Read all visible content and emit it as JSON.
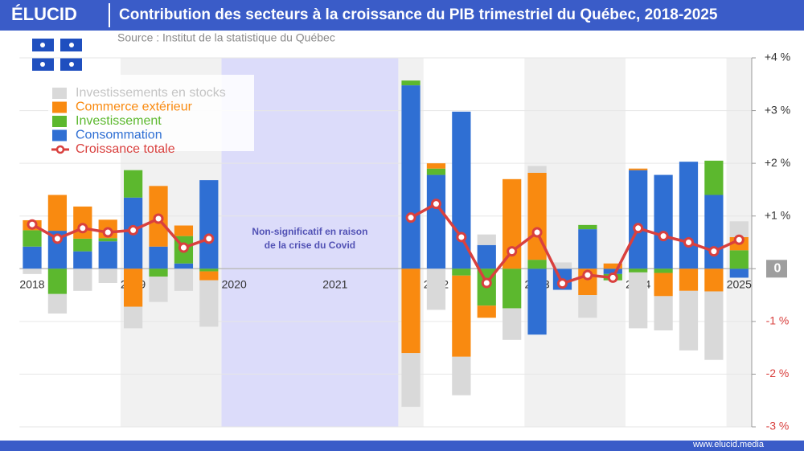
{
  "header": {
    "logo": "ÉLUCID",
    "title": "Contribution des secteurs à la croissance du PIB trimestriel du Québec, 2018-2025",
    "source": "Source : Institut de la statistique du Québec"
  },
  "footer": {
    "url": "www.elucid.media"
  },
  "chart_data": {
    "type": "bar",
    "stacked": true,
    "categories": [
      "2018",
      null,
      null,
      null,
      "2019",
      null,
      null,
      null,
      "2020",
      null,
      null,
      null,
      "2021",
      null,
      null,
      null,
      "2022",
      null,
      null,
      null,
      "2023",
      null,
      null,
      null,
      "2024",
      null,
      null,
      null,
      "2025"
    ],
    "series": [
      {
        "name": "Consommation",
        "color": "#2f6fd3",
        "values": [
          0.42,
          0.72,
          0.33,
          0.52,
          1.35,
          0.42,
          0.1,
          1.68,
          null,
          null,
          null,
          null,
          null,
          null,
          null,
          3.48,
          1.78,
          2.98,
          0.45,
          0,
          -1.25,
          -0.4,
          0.75,
          -0.1,
          1.87,
          1.78,
          2.03,
          1.4,
          -0.17
        ]
      },
      {
        "name": "Investissement",
        "color": "#5cb82e",
        "values": [
          0.31,
          -0.48,
          0.24,
          0.06,
          0.52,
          -0.15,
          0.52,
          -0.05,
          null,
          null,
          null,
          null,
          null,
          null,
          null,
          0.09,
          0.12,
          -0.13,
          -0.7,
          -0.75,
          0.17,
          0,
          0.08,
          -0.12,
          -0.07,
          -0.08,
          0,
          0.65,
          0.35
        ]
      },
      {
        "name": "Commerce extérieur",
        "color": "#f98a10",
        "values": [
          0.19,
          0.68,
          0.61,
          0.35,
          -0.72,
          1.15,
          0.2,
          -0.17,
          null,
          null,
          null,
          null,
          null,
          null,
          null,
          -1.6,
          0.1,
          -1.54,
          -0.23,
          1.7,
          1.65,
          0,
          -0.5,
          0.1,
          0.03,
          -0.44,
          -0.42,
          -0.43,
          0.25
        ]
      },
      {
        "name": "Investissements en stocks",
        "color": "#d9d9d9",
        "values": [
          -0.1,
          -0.37,
          -0.42,
          -0.27,
          -0.41,
          -0.48,
          -0.42,
          -0.88,
          null,
          null,
          null,
          null,
          null,
          null,
          null,
          -1.02,
          -0.78,
          -0.73,
          0.2,
          -0.6,
          0.13,
          0.12,
          -0.43,
          0,
          -1.06,
          -0.65,
          -1.13,
          -1.3,
          0.3
        ]
      },
      {
        "name": "Croissance totale",
        "color": "#d9403e",
        "type": "line",
        "values": [
          0.84,
          0.57,
          0.77,
          0.69,
          0.73,
          0.95,
          0.4,
          0.57,
          null,
          null,
          null,
          null,
          null,
          null,
          null,
          0.97,
          1.23,
          0.6,
          -0.27,
          0.33,
          0.69,
          -0.28,
          -0.12,
          -0.17,
          0.77,
          0.62,
          0.5,
          0.33,
          0.55
        ]
      }
    ],
    "ylim": [
      -3,
      4
    ],
    "yticks": [
      {
        "value": 4,
        "label": "+4 %"
      },
      {
        "value": 3,
        "label": "+3 %"
      },
      {
        "value": 2,
        "label": "+2 %"
      },
      {
        "value": 1,
        "label": "+1 %"
      },
      0,
      {
        "value": -1,
        "label": "-1 %"
      },
      {
        "value": -2,
        "label": "-2 %"
      },
      {
        "value": -3,
        "label": "-3 %"
      }
    ],
    "grid": true,
    "legend": "upper-left",
    "annotation": [
      "Non-significatif en raison",
      "de la crise du Covid"
    ]
  }
}
